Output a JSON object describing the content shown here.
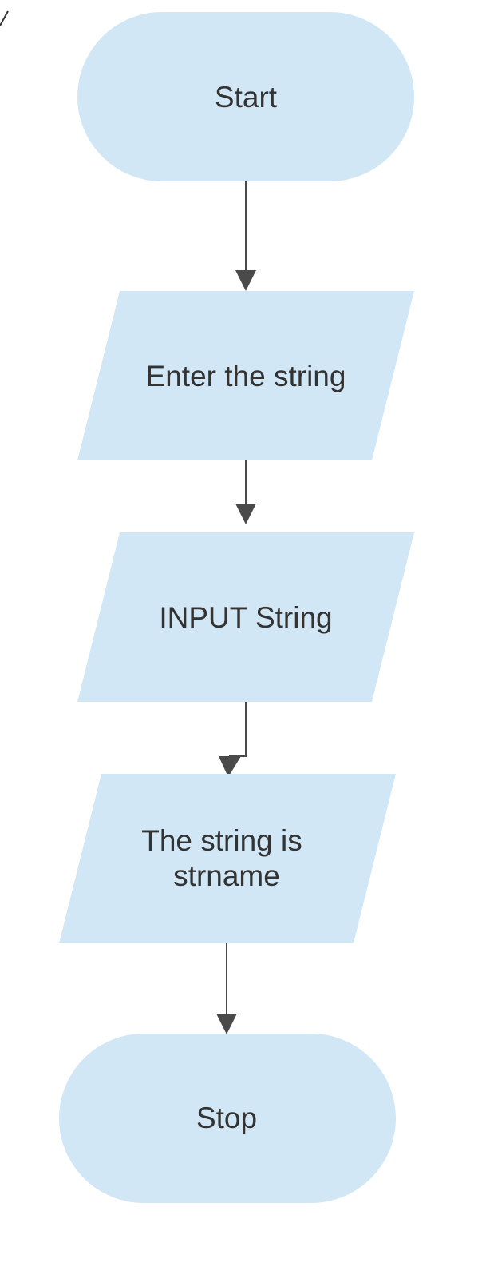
{
  "flowchart": {
    "nodes": [
      {
        "id": "start",
        "shape": "terminator",
        "lines": [
          "Start"
        ]
      },
      {
        "id": "enter",
        "shape": "parallelogram",
        "lines": [
          "Enter the string"
        ]
      },
      {
        "id": "input",
        "shape": "parallelogram",
        "lines": [
          "INPUT String"
        ]
      },
      {
        "id": "output",
        "shape": "parallelogram",
        "lines": [
          "The string is",
          "strname"
        ]
      },
      {
        "id": "stop",
        "shape": "terminator",
        "lines": [
          "Stop"
        ]
      }
    ],
    "edges": [
      {
        "from": "start",
        "to": "enter"
      },
      {
        "from": "enter",
        "to": "input"
      },
      {
        "from": "input",
        "to": "output"
      },
      {
        "from": "output",
        "to": "stop"
      }
    ],
    "colors": {
      "node_fill": "#d2e7f5",
      "connector": "#4a4a4a",
      "text": "#333333"
    }
  }
}
